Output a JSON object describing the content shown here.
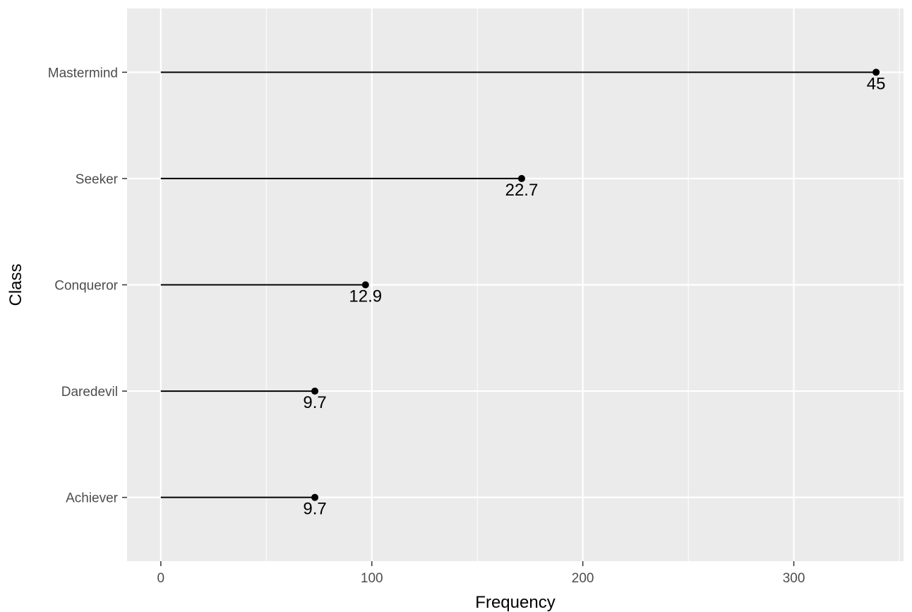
{
  "chart_data": {
    "type": "lollipop",
    "title": "",
    "xlabel": "Frequency",
    "ylabel": "Class",
    "xlim": [
      -16,
      352
    ],
    "x_ticks": [
      0,
      100,
      200,
      300
    ],
    "x_tick_labels": [
      "0",
      "100",
      "200",
      "300"
    ],
    "categories": [
      "Achiever",
      "Daredevil",
      "Conqueror",
      "Seeker",
      "Mastermind"
    ],
    "values": [
      73,
      73,
      97,
      171,
      339
    ],
    "labels": [
      "9.7",
      "9.7",
      "12.9",
      "22.7",
      "45"
    ],
    "grid": true,
    "legend": "none",
    "colors": {
      "panel_background": "#ebebeb",
      "grid_line": "#ffffff",
      "mark": "#000000",
      "tick_label": "#4d4d4d",
      "tick": "#333333"
    }
  }
}
